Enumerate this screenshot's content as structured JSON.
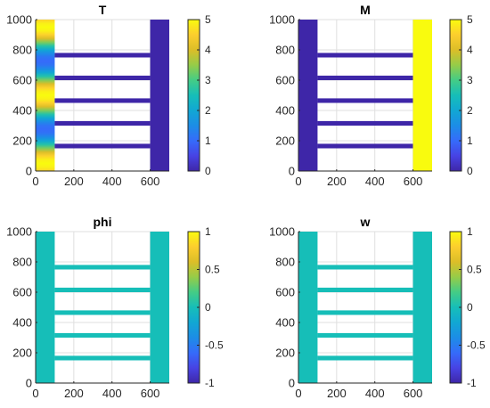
{
  "figure": {
    "background": "#ffffff",
    "axis_color": "#262626",
    "grid_color": "#dfdfdf"
  },
  "chart_data": [
    {
      "type": "heatmap",
      "title": "T",
      "xlim": [
        0,
        700
      ],
      "ylim": [
        0,
        1000
      ],
      "xticks": [
        "0",
        "200",
        "400",
        "600"
      ],
      "xtick_values": [
        0,
        200,
        400,
        600
      ],
      "yticks": [
        "0",
        "200",
        "400",
        "600",
        "800",
        "1000"
      ],
      "ytick_values": [
        0,
        200,
        400,
        600,
        800,
        1000
      ],
      "colorbar": {
        "limits": [
          0,
          5
        ],
        "ticks": [
          "0",
          "1",
          "2",
          "3",
          "4",
          "5"
        ],
        "tick_values": [
          0,
          1,
          2,
          3,
          4,
          5
        ]
      },
      "grid": true,
      "regions": [
        {
          "x": [
            0,
            100
          ],
          "y": [
            0,
            1000
          ],
          "value": "gradient",
          "peaks_y": [
            50,
            500,
            950
          ],
          "peak_value": 5,
          "trough_value": 1
        },
        {
          "x": [
            100,
            600
          ],
          "y": [
            150,
            180
          ],
          "value": 0
        },
        {
          "x": [
            100,
            600
          ],
          "y": [
            300,
            330
          ],
          "value": 0
        },
        {
          "x": [
            100,
            600
          ],
          "y": [
            450,
            480
          ],
          "value": 0
        },
        {
          "x": [
            100,
            600
          ],
          "y": [
            600,
            630
          ],
          "value": 0
        },
        {
          "x": [
            100,
            600
          ],
          "y": [
            750,
            780
          ],
          "value": 0
        },
        {
          "x": [
            600,
            700
          ],
          "y": [
            0,
            1000
          ],
          "value": 0
        }
      ]
    },
    {
      "type": "heatmap",
      "title": "M",
      "xlim": [
        0,
        700
      ],
      "ylim": [
        0,
        1000
      ],
      "xticks": [
        "0",
        "200",
        "400",
        "600"
      ],
      "xtick_values": [
        0,
        200,
        400,
        600
      ],
      "yticks": [
        "0",
        "200",
        "400",
        "600",
        "800",
        "1000"
      ],
      "ytick_values": [
        0,
        200,
        400,
        600,
        800,
        1000
      ],
      "colorbar": {
        "limits": [
          0,
          5
        ],
        "ticks": [
          "0",
          "1",
          "2",
          "3",
          "4",
          "5"
        ],
        "tick_values": [
          0,
          1,
          2,
          3,
          4,
          5
        ]
      },
      "grid": true,
      "regions": [
        {
          "x": [
            0,
            100
          ],
          "y": [
            0,
            1000
          ],
          "value": 0
        },
        {
          "x": [
            100,
            600
          ],
          "y": [
            150,
            180
          ],
          "value": 0
        },
        {
          "x": [
            100,
            600
          ],
          "y": [
            300,
            330
          ],
          "value": 0
        },
        {
          "x": [
            100,
            600
          ],
          "y": [
            450,
            480
          ],
          "value": 0
        },
        {
          "x": [
            100,
            600
          ],
          "y": [
            600,
            630
          ],
          "value": 0
        },
        {
          "x": [
            100,
            600
          ],
          "y": [
            750,
            780
          ],
          "value": 0
        },
        {
          "x": [
            600,
            700
          ],
          "y": [
            0,
            1000
          ],
          "value": 5
        }
      ]
    },
    {
      "type": "heatmap",
      "title": "phi",
      "xlim": [
        0,
        700
      ],
      "ylim": [
        0,
        1000
      ],
      "xticks": [
        "0",
        "200",
        "400",
        "600"
      ],
      "xtick_values": [
        0,
        200,
        400,
        600
      ],
      "yticks": [
        "0",
        "200",
        "400",
        "600",
        "800",
        "1000"
      ],
      "ytick_values": [
        0,
        200,
        400,
        600,
        800,
        1000
      ],
      "colorbar": {
        "limits": [
          -1,
          1
        ],
        "ticks": [
          "-1",
          "-0.5",
          "0",
          "0.5",
          "1"
        ],
        "tick_values": [
          -1,
          -0.5,
          0,
          0.5,
          1
        ]
      },
      "grid": true,
      "regions": [
        {
          "x": [
            0,
            100
          ],
          "y": [
            0,
            1000
          ],
          "value": 0
        },
        {
          "x": [
            100,
            600
          ],
          "y": [
            150,
            180
          ],
          "value": 0
        },
        {
          "x": [
            100,
            600
          ],
          "y": [
            300,
            330
          ],
          "value": 0
        },
        {
          "x": [
            100,
            600
          ],
          "y": [
            450,
            480
          ],
          "value": 0
        },
        {
          "x": [
            100,
            600
          ],
          "y": [
            600,
            630
          ],
          "value": 0
        },
        {
          "x": [
            100,
            600
          ],
          "y": [
            750,
            780
          ],
          "value": 0
        },
        {
          "x": [
            600,
            700
          ],
          "y": [
            0,
            1000
          ],
          "value": 0
        }
      ]
    },
    {
      "type": "heatmap",
      "title": "w",
      "xlim": [
        0,
        700
      ],
      "ylim": [
        0,
        1000
      ],
      "xticks": [
        "0",
        "200",
        "400",
        "600"
      ],
      "xtick_values": [
        0,
        200,
        400,
        600
      ],
      "yticks": [
        "0",
        "200",
        "400",
        "600",
        "800",
        "1000"
      ],
      "ytick_values": [
        0,
        200,
        400,
        600,
        800,
        1000
      ],
      "colorbar": {
        "limits": [
          -1,
          1
        ],
        "ticks": [
          "-1",
          "-0.5",
          "0",
          "0.5",
          "1"
        ],
        "tick_values": [
          -1,
          -0.5,
          0,
          0.5,
          1
        ]
      },
      "grid": true,
      "regions": [
        {
          "x": [
            0,
            100
          ],
          "y": [
            0,
            1000
          ],
          "value": 0
        },
        {
          "x": [
            100,
            600
          ],
          "y": [
            150,
            180
          ],
          "value": 0
        },
        {
          "x": [
            100,
            600
          ],
          "y": [
            300,
            330
          ],
          "value": 0
        },
        {
          "x": [
            100,
            600
          ],
          "y": [
            450,
            480
          ],
          "value": 0
        },
        {
          "x": [
            100,
            600
          ],
          "y": [
            600,
            630
          ],
          "value": 0
        },
        {
          "x": [
            100,
            600
          ],
          "y": [
            750,
            780
          ],
          "value": 0
        },
        {
          "x": [
            600,
            700
          ],
          "y": [
            0,
            1000
          ],
          "value": 0
        }
      ]
    }
  ]
}
